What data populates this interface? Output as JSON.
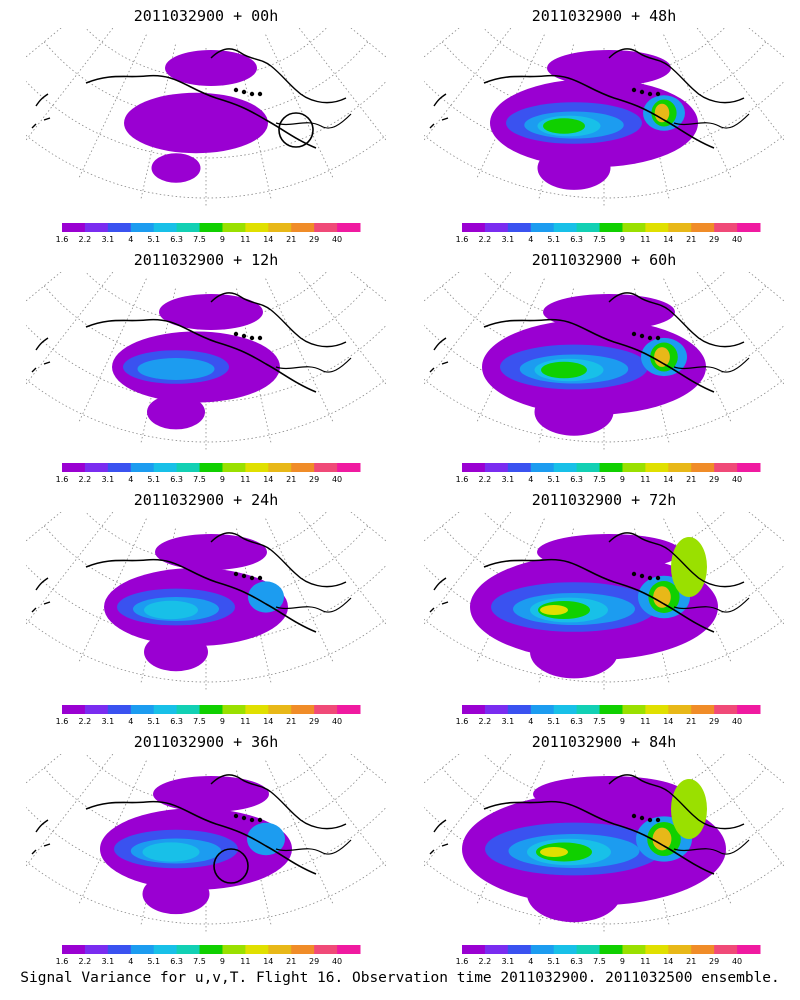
{
  "caption": "Signal Variance for u,v,T. Flight 16. Observation time 2011032900. 2011032500 ensemble.",
  "colorbar": {
    "ticks": [
      "1.6",
      "2.2",
      "3.1",
      "4",
      "5.1",
      "6.3",
      "7.5",
      "9",
      "11",
      "14",
      "21",
      "29",
      "40"
    ],
    "colors": [
      "#9a00d2",
      "#7a2cf0",
      "#3a52f0",
      "#1c9cf0",
      "#18c0e8",
      "#12d0b4",
      "#10d000",
      "#9ae000",
      "#e0e000",
      "#e8b818",
      "#f08c28",
      "#f04a78",
      "#f01aa0"
    ]
  },
  "chart_data": [
    {
      "type": "heatmap",
      "title": "2011032900 + 00h",
      "forecast_hour": 0,
      "intensity": 0.15,
      "marker": "circle"
    },
    {
      "type": "heatmap",
      "title": "2011032900 + 12h",
      "forecast_hour": 12,
      "intensity": 0.3,
      "marker": "none"
    },
    {
      "type": "heatmap",
      "title": "2011032900 + 24h",
      "forecast_hour": 24,
      "intensity": 0.4,
      "marker": "none"
    },
    {
      "type": "heatmap",
      "title": "2011032900 + 36h",
      "forecast_hour": 36,
      "intensity": 0.45,
      "marker": "circle"
    },
    {
      "type": "heatmap",
      "title": "2011032900 + 48h",
      "forecast_hour": 48,
      "intensity": 0.55,
      "marker": "none"
    },
    {
      "type": "heatmap",
      "title": "2011032900 + 60h",
      "forecast_hour": 60,
      "intensity": 0.65,
      "marker": "none"
    },
    {
      "type": "heatmap",
      "title": "2011032900 + 72h",
      "forecast_hour": 72,
      "intensity": 0.8,
      "marker": "none"
    },
    {
      "type": "heatmap",
      "title": "2011032900 + 84h",
      "forecast_hour": 84,
      "intensity": 0.9,
      "marker": "none"
    }
  ]
}
